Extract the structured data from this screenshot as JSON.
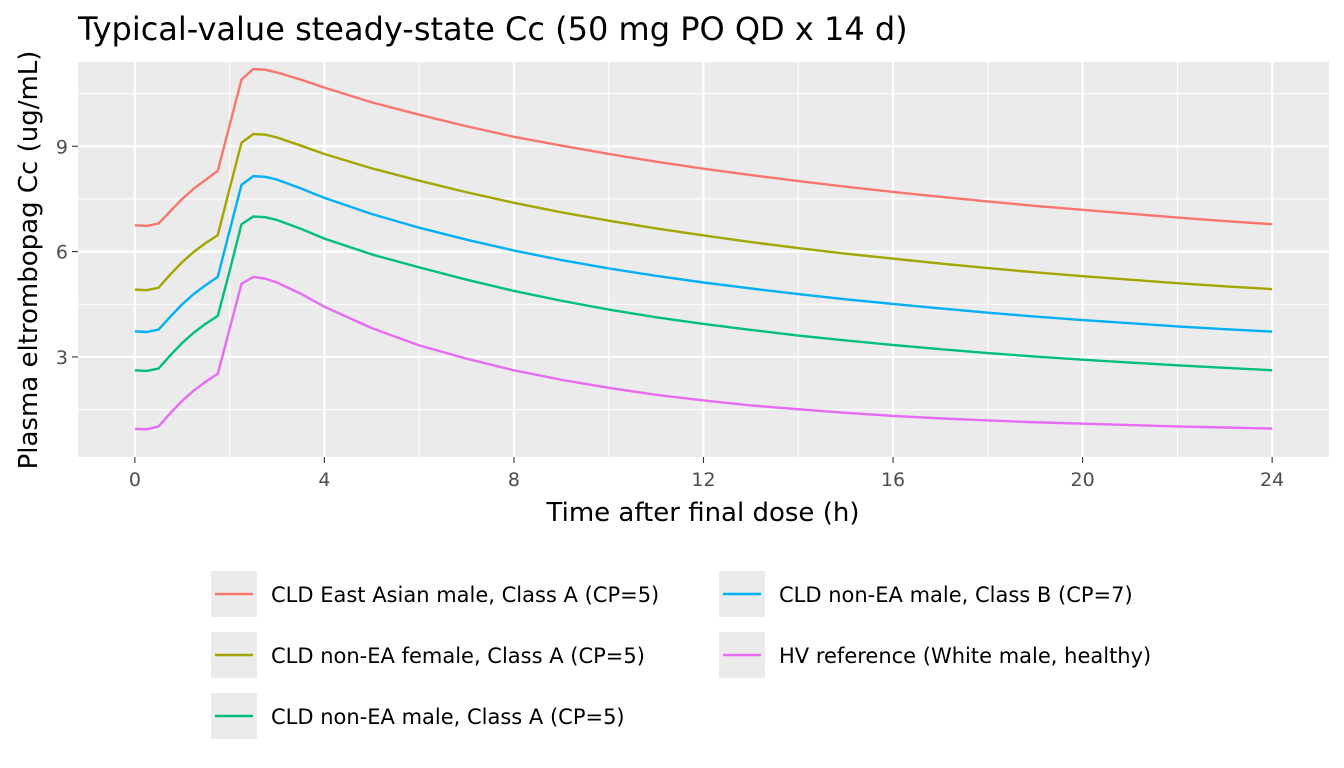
{
  "chart_data": {
    "type": "line",
    "title": "Typical-value steady-state Cc (50 mg PO QD x 14 d)",
    "xlabel": "Time after final dose (h)",
    "ylabel": "Plasma eltrombopag Cc (ug/mL)",
    "xlim": [
      -1.2,
      25.2
    ],
    "ylim": [
      0.15,
      11.4
    ],
    "x_ticks": [
      0,
      4,
      8,
      12,
      16,
      20,
      24
    ],
    "y_ticks": [
      3,
      6,
      9
    ],
    "grid": true,
    "legend_position": "bottom",
    "x": [
      0,
      0.25,
      0.5,
      0.75,
      1,
      1.25,
      1.5,
      1.75,
      2,
      2.25,
      2.5,
      2.75,
      3,
      3.5,
      4,
      5,
      6,
      7,
      8,
      9,
      10,
      11,
      12,
      13,
      14,
      15,
      16,
      17,
      18,
      19,
      20,
      21,
      22,
      23,
      24
    ],
    "series": [
      {
        "name": "CLD East Asian male, Class A (CP=5)",
        "color": "#F8766D",
        "values": [
          6.75,
          6.73,
          6.8,
          7.15,
          7.5,
          7.8,
          8.05,
          8.3,
          9.6,
          10.9,
          11.2,
          11.18,
          11.1,
          10.9,
          10.67,
          10.25,
          9.9,
          9.57,
          9.27,
          9.02,
          8.78,
          8.56,
          8.36,
          8.18,
          8.01,
          7.85,
          7.7,
          7.56,
          7.43,
          7.3,
          7.19,
          7.08,
          6.97,
          6.87,
          6.78
        ]
      },
      {
        "name": "CLD non-EA female, Class A (CP=5)",
        "color": "#A3A500",
        "values": [
          4.92,
          4.9,
          4.97,
          5.35,
          5.7,
          6.0,
          6.25,
          6.47,
          7.8,
          9.1,
          9.35,
          9.33,
          9.25,
          9.02,
          8.78,
          8.37,
          8.02,
          7.69,
          7.39,
          7.12,
          6.88,
          6.66,
          6.46,
          6.27,
          6.1,
          5.94,
          5.8,
          5.66,
          5.53,
          5.41,
          5.3,
          5.2,
          5.1,
          5.01,
          4.93
        ]
      },
      {
        "name": "CLD non-EA male, Class A (CP=5)",
        "color": "#00BF7D",
        "values": [
          2.62,
          2.6,
          2.67,
          3.05,
          3.4,
          3.7,
          3.95,
          4.17,
          5.45,
          6.78,
          7.0,
          6.98,
          6.9,
          6.65,
          6.37,
          5.92,
          5.55,
          5.2,
          4.88,
          4.6,
          4.35,
          4.13,
          3.94,
          3.77,
          3.61,
          3.47,
          3.34,
          3.22,
          3.11,
          3.01,
          2.92,
          2.84,
          2.76,
          2.69,
          2.62
        ]
      },
      {
        "name": "CLD non-EA male, Class B (CP=7)",
        "color": "#00B0F6",
        "values": [
          3.73,
          3.71,
          3.78,
          4.15,
          4.5,
          4.8,
          5.05,
          5.28,
          6.6,
          7.9,
          8.15,
          8.13,
          8.05,
          7.8,
          7.53,
          7.07,
          6.68,
          6.34,
          6.03,
          5.76,
          5.52,
          5.31,
          5.12,
          4.95,
          4.79,
          4.64,
          4.51,
          4.38,
          4.26,
          4.15,
          4.05,
          3.96,
          3.87,
          3.79,
          3.72
        ]
      },
      {
        "name": "HV reference (White male, healthy)",
        "color": "#E76BF3",
        "values": [
          0.95,
          0.94,
          1.02,
          1.4,
          1.75,
          2.05,
          2.3,
          2.52,
          3.8,
          5.08,
          5.28,
          5.23,
          5.12,
          4.8,
          4.43,
          3.82,
          3.33,
          2.95,
          2.62,
          2.35,
          2.12,
          1.92,
          1.76,
          1.62,
          1.51,
          1.41,
          1.32,
          1.25,
          1.19,
          1.14,
          1.1,
          1.06,
          1.02,
          0.99,
          0.96
        ]
      }
    ],
    "legend_order": [
      0,
      3,
      1,
      4,
      2
    ]
  }
}
